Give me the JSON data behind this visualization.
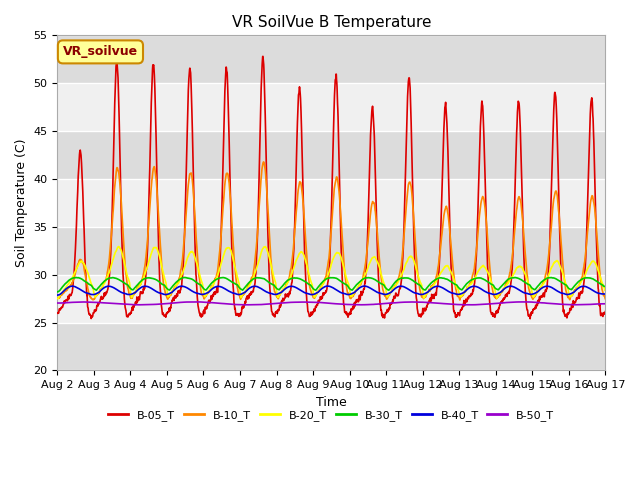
{
  "title": "VR SoilVue B Temperature",
  "xlabel": "Time",
  "ylabel": "Soil Temperature (C)",
  "ylim": [
    20,
    55
  ],
  "total_days": 15,
  "x_tick_labels": [
    "Aug 2",
    "Aug 3",
    "Aug 4",
    "Aug 5",
    "Aug 6",
    "Aug 7",
    "Aug 8",
    "Aug 9",
    "Aug 10",
    "Aug 11",
    "Aug 12",
    "Aug 13",
    "Aug 14",
    "Aug 15",
    "Aug 16",
    "Aug 17"
  ],
  "series_colors": {
    "B-05_T": "#dd0000",
    "B-10_T": "#ff8800",
    "B-20_T": "#ffff00",
    "B-30_T": "#00cc00",
    "B-40_T": "#0000dd",
    "B-50_T": "#9900cc"
  },
  "legend_label": "VR_soilvue",
  "legend_box_facecolor": "#ffff99",
  "legend_box_edgecolor": "#cc8800",
  "plot_bg_light": "#f0f0f0",
  "plot_bg_dark": "#dcdcdc",
  "grid_color": "#ffffff",
  "title_fontsize": 11,
  "axis_label_fontsize": 9,
  "tick_fontsize": 8,
  "legend_fontsize": 8,
  "annotation_fontsize": 9,
  "lw": 1.2
}
